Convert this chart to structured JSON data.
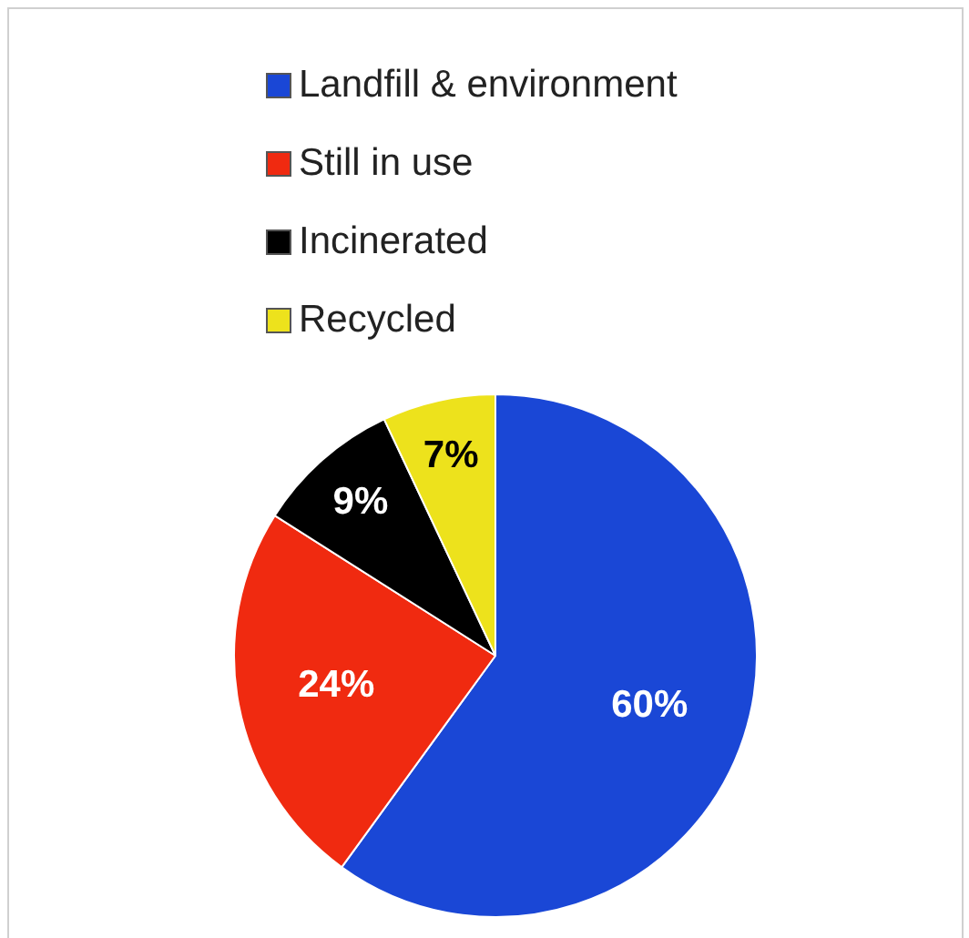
{
  "chart_data": {
    "type": "pie",
    "categories": [
      "Landfill & environment",
      "Still in use",
      "Incinerated",
      "Recycled"
    ],
    "values": [
      60,
      24,
      9,
      7
    ],
    "colors": [
      "#1a47d6",
      "#f02a10",
      "#000000",
      "#ede21c"
    ],
    "value_labels": [
      "60%",
      "24%",
      "9%",
      "7%"
    ],
    "legend": "top"
  }
}
